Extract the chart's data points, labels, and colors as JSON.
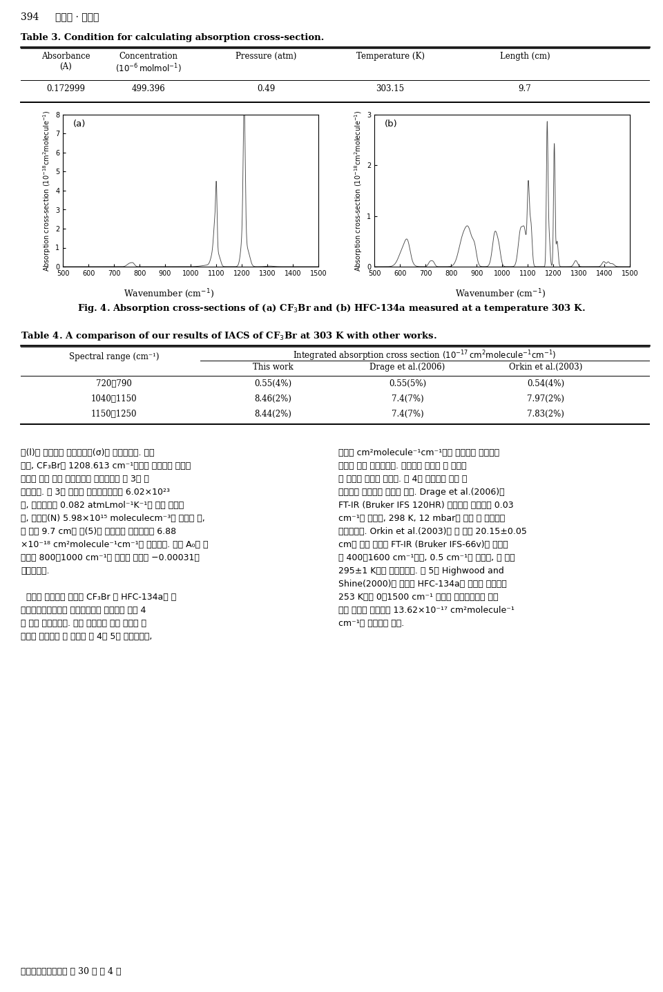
{
  "page_title": "394    김지혜 · 이정순",
  "table3_title": "Table 3. Condition for calculating absorption cross-section.",
  "table3_col_headers": [
    "Absorbance\n(A)",
    "Concentration\n(10⁻⁶ molmol⁻¹)",
    "Pressure (atm)",
    "Temperature (K)",
    "Length (cm)"
  ],
  "table3_data": [
    "0.172999",
    "499.396",
    "0.49",
    "303.15",
    "9.7"
  ],
  "table4_title": "Table 4. A comparison of our results of IACS of CF₃Br at 303 K with other works.",
  "table4_merged_header": "Integrated absorption cross section (10⁻¹⁷ cm²molecule⁻¹cm⁻¹)",
  "table4_subheaders": [
    "This work",
    "Drage et al.(2006)",
    "Orkin et al.(2003)"
  ],
  "table4_spectral_label": "Spectral range (cm⁻¹)",
  "table4_data": [
    [
      "720～790",
      "0.55(4%)",
      "0.55(5%)",
      "0.54(4%)"
    ],
    [
      "1040～1150",
      "8.46(2%)",
      "7.4(7%)",
      "7.97(2%)"
    ],
    [
      "1150～1250",
      "8.44(2%)",
      "7.4(7%)",
      "7.83(2%)"
    ]
  ],
  "fig_caption": "Fig. 4. Absorption cross-sections of (a) CF₃Br and (b) HFC-134a measured at a temperature 303 K.",
  "plot_xticks": [
    500,
    600,
    700,
    800,
    900,
    1000,
    1100,
    1200,
    1300,
    1400,
    1500
  ],
  "plot_a_yticks": [
    0,
    1,
    2,
    3,
    4,
    5,
    6,
    7,
    8
  ],
  "plot_b_yticks": [
    0,
    1,
    2,
    3
  ],
  "line_color": "#555555",
  "body_left_col": [
    "이(l)를 적용하여 흥수단면적(σ)을 산출하였다. 예를",
    "들어, CF₃Br의 1208.613 cm⁻¹에서의 최대흥광 지점의",
    "흥광도 값에 대한 흥수단면적 산출과정을 표 3에 나",
    "타내었다. 표 3의 조건과 아보가드로수인 6.02×10²³",
    "개, 기체상수인 0.082 atmLmol⁻¹K⁻¹의 값을 대입하",
    "여, 수먀도(N) 5.98×10¹⁵ moleculecm⁻³을 산출한 뒤,",
    "셀 길이 9.7 cm를 식(5)에 대입하여 흥수단면적 6.88",
    "×10⁻¹⁸ cm²molecule⁻¹cm⁻¹을 구하였다. 이때 A₀의 값",
    "으로는 800～1000 cm⁻¹의 구간의 평균값 −0.00031을",
    "사용하였다.",
    "",
    "  다음은 실온에서 측정한 CF₃Br 및 HFC-134a의 흥",
    "수스펙트럼으로부터 흥수단면적을 계산하여 그림 4",
    "와 같이 나타내었다. 또한 흥수도가 강한 영역을 중",
    "심으로 적분하여 그 결과를 표 4와 5에 나타내었고,"
  ],
  "body_right_col": [
    "단위는 cm²molecule⁻¹cm⁻¹로써 표에서는 생략하여",
    "지수만 간단 표기하였다. 괄호안의 숫자는 각 문헌에",
    "서 보고한 불확도 값이다. 표 4의 결과값에 대한 실",
    "험내용을 살펴보면 다음과 같다. Drage et al.(2006)은",
    "FT-IR (Bruker IFS 120HR) 분광기를 사용하여 0.03",
    "cm⁻¹의 분해능, 298 K, 12 mbar의 가스 셀 조건으로",
    "측정하였다. Orkin et al.(2003)은 셀 길이 20.15±0.05",
    "cm의 셀을 장착한 FT-IR (Bruker IFS-66v)를 사용하",
    "여 400～1600 cm⁻¹에서, 0.5 cm⁻¹의 분해능, 셀 온도",
    "295±1 K에서 측정하였다. 표 5의 Highwood and",
    "Shine(2000)은 순수한 HFC-134a의 증기로 사용하여",
    "253 K에서 0～1500 cm⁻¹ 범위로 흥수단면적을 측정",
    "하여 적분한 결과로써 13.62×10⁻¹⁷ cm²molecule⁻¹",
    "cm⁻¹을 보고하고 있다."
  ],
  "footer": "한국대기환경학회지 제 30 권 제 4 호"
}
